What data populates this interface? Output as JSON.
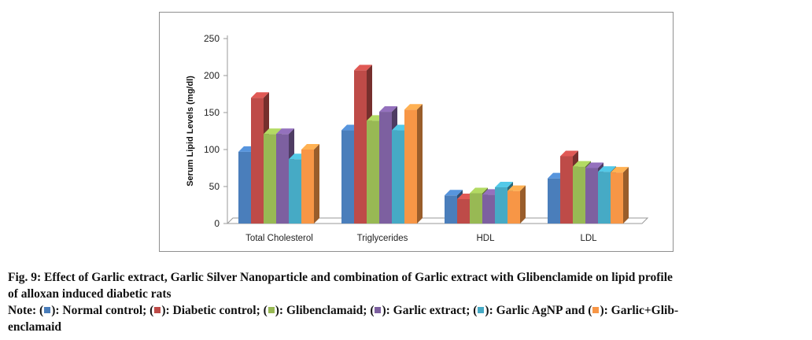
{
  "chart_data": {
    "type": "bar",
    "style": "3d-clustered-column",
    "title": "",
    "ylabel": "Serum Lipid Levels (mg/dl)",
    "xlabel": "",
    "ylim": [
      0,
      250
    ],
    "yticks": [
      0,
      50,
      100,
      150,
      200,
      250
    ],
    "grid": false,
    "legend": "none",
    "categories": [
      "Total Cholesterol",
      "Triglycerides",
      "HDL",
      "LDL"
    ],
    "series": [
      {
        "name": "Normal control",
        "color": "#4a7ebb",
        "values": [
          97,
          126,
          38,
          61
        ]
      },
      {
        "name": "Diabetic control",
        "color": "#be4b48",
        "values": [
          170,
          207,
          33,
          91
        ]
      },
      {
        "name": "Glibenclamaid",
        "color": "#98b954",
        "values": [
          121,
          139,
          41,
          77
        ]
      },
      {
        "name": "Garlic extract",
        "color": "#7d60a0",
        "values": [
          121,
          151,
          39,
          75
        ]
      },
      {
        "name": "Garlic AgNP",
        "color": "#46aac5",
        "values": [
          87,
          126,
          49,
          70
        ]
      },
      {
        "name": "Garlic+Glib-enclamaid",
        "color": "#f79646",
        "values": [
          100,
          154,
          44,
          69
        ]
      }
    ]
  },
  "caption": {
    "title_line1": "Fig. 9: Effect of Garlic extract, Garlic Silver Nanoparticle and combination of Garlic extract with Glibenclamide on lipid profile",
    "title_line2": "of alloxan induced diabetic rats",
    "note_prefix": "Note: (",
    "note_items": [
      {
        "label": "): Normal control; (",
        "color": "#4a7ebb"
      },
      {
        "label": "): Diabetic control; (",
        "color": "#be4b48"
      },
      {
        "label": "): Glibenclamaid; (",
        "color": "#98b954"
      },
      {
        "label": "): Garlic extract; (",
        "color": "#7d60a0"
      },
      {
        "label": "): Garlic AgNP and (",
        "color": "#46aac5"
      },
      {
        "label": "): Garlic+Glib-",
        "color": "#f79646"
      }
    ],
    "note_line2": "enclamaid"
  }
}
